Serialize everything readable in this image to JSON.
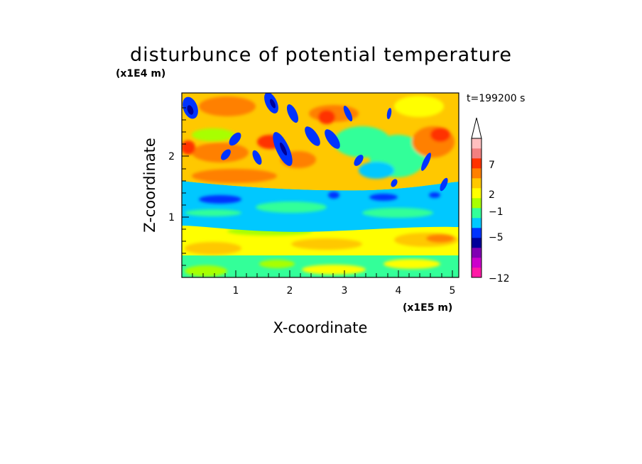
{
  "chart_data": {
    "type": "heatmap",
    "title": "disturbunce of potential temperature",
    "annotation": "t=199200 s",
    "xlabel": "X-coordinate",
    "ylabel": "Z-coordinate",
    "x_multiplier": "(x1E5 m)",
    "y_multiplier": "(x1E4 m)",
    "x_ticks": [
      "1",
      "2",
      "3",
      "4",
      "5"
    ],
    "y_ticks": [
      "1",
      "2"
    ],
    "xlim": [
      0,
      5.12
    ],
    "ylim": [
      0,
      3.0
    ],
    "colorbar": {
      "labels": [
        "7",
        "2",
        "−1",
        "−5",
        "−12"
      ],
      "extend": "max",
      "colors": [
        "#ff1aa6",
        "#cc00cc",
        "#8000b3",
        "#000099",
        "#0033ff",
        "#00c8ff",
        "#33ff99",
        "#a8ff00",
        "#ffff00",
        "#ffc800",
        "#ff8000",
        "#ff3300",
        "#f28080",
        "#ffbfbf"
      ]
    },
    "values_note": "",
    "layers": [
      {
        "z_range": [
          0.0,
          0.35
        ],
        "dominant": "green / yellow"
      },
      {
        "z_range": [
          0.35,
          0.9
        ],
        "dominant": "yellow / orange"
      },
      {
        "z_range": [
          0.9,
          1.6
        ],
        "dominant": "cyan with blue cells"
      },
      {
        "z_range": [
          1.6,
          3.0
        ],
        "dominant": "orange / red / blue wave pattern"
      }
    ]
  }
}
